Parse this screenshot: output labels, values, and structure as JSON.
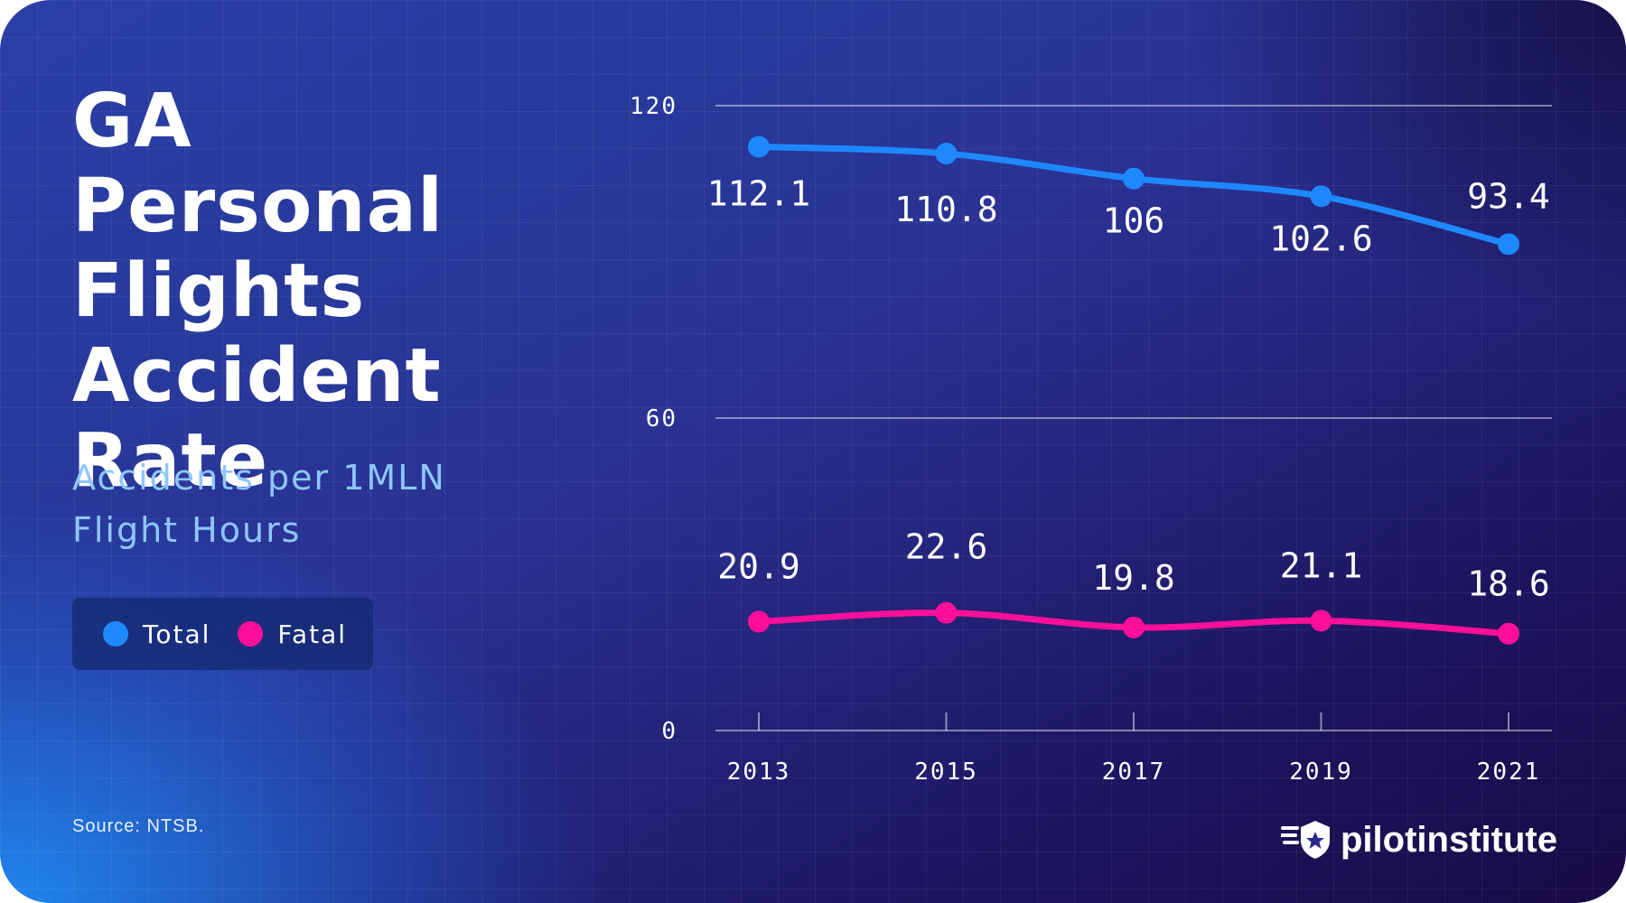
{
  "title_lines": [
    "GA Personal",
    "Flights",
    "Accident",
    "Rate"
  ],
  "subtitle_lines": [
    "Accidents per 1MLN",
    "Flight Hours"
  ],
  "source": "Source: NTSB.",
  "brand": "pilotinstitute",
  "colors": {
    "total": "#1e88ff",
    "fatal": "#ff0f9a"
  },
  "chart_data": {
    "type": "line",
    "title": "GA Personal Flights Accident Rate",
    "ylabel": "Accidents per 1MLN Flight Hours",
    "xlabel": "",
    "x": [
      2013,
      2015,
      2017,
      2019,
      2021
    ],
    "x_tick_labels": [
      "2013",
      "2015",
      "2017",
      "2019",
      "2021"
    ],
    "y_ticks": [
      0,
      60,
      120
    ],
    "y_tick_labels": [
      "0",
      "60",
      "120"
    ],
    "ylim": [
      0,
      120
    ],
    "grid": true,
    "legend": "left-middle",
    "series": [
      {
        "name": "Total",
        "values": [
          112.1,
          110.8,
          106,
          102.6,
          93.4
        ],
        "labels": [
          "112.1",
          "110.8",
          "106",
          "102.6",
          "93.4"
        ]
      },
      {
        "name": "Fatal",
        "values": [
          20.9,
          22.6,
          19.8,
          21.1,
          18.6
        ],
        "labels": [
          "20.9",
          "22.6",
          "19.8",
          "21.1",
          "18.6"
        ]
      }
    ]
  }
}
